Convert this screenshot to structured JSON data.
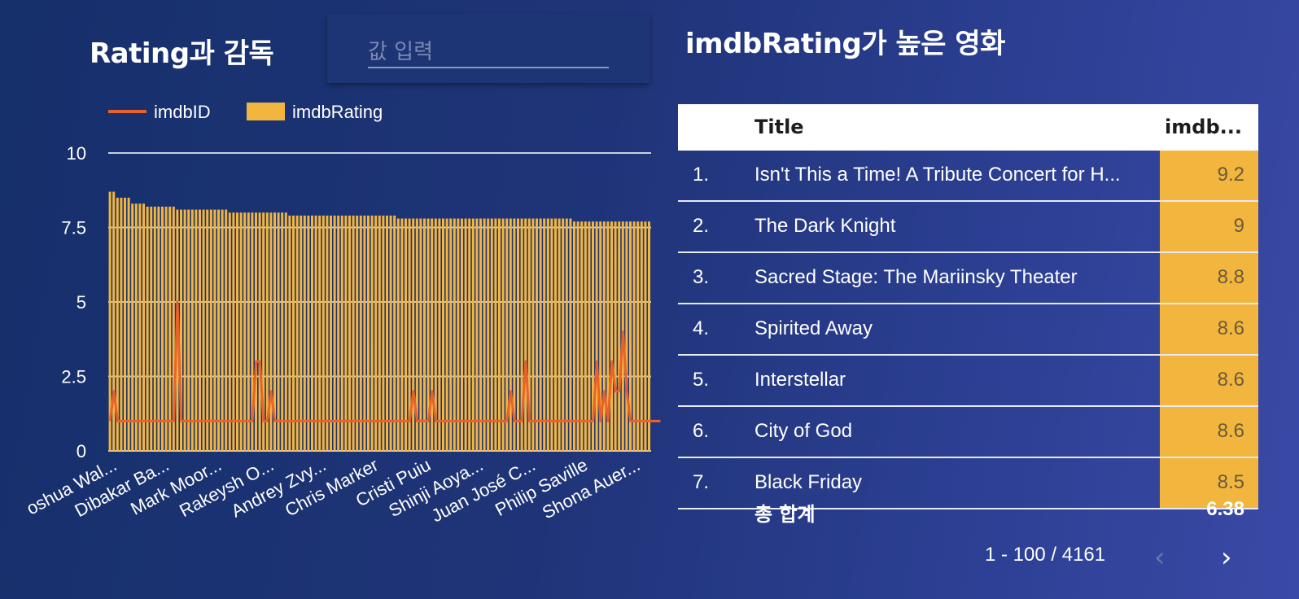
{
  "left": {
    "title": "Rating과 감독",
    "input_placeholder": "값 입력"
  },
  "right": {
    "title": "imdbRating가 높은 영화",
    "columns": [
      "Title",
      "imdb..."
    ],
    "rows": [
      {
        "num": "1.",
        "title": "Isn't This a Time! A Tribute Concert for H...",
        "rating": "9.2"
      },
      {
        "num": "2.",
        "title": "The Dark Knight",
        "rating": "9"
      },
      {
        "num": "3.",
        "title": "Sacred Stage: The Mariinsky Theater",
        "rating": "8.8"
      },
      {
        "num": "4.",
        "title": "Spirited Away",
        "rating": "8.6"
      },
      {
        "num": "5.",
        "title": "Interstellar",
        "rating": "8.6"
      },
      {
        "num": "6.",
        "title": "City of God",
        "rating": "8.6"
      },
      {
        "num": "7.",
        "title": "Black Friday",
        "rating": "8.5"
      }
    ],
    "total_label": "총 합계",
    "total_value": "6.38",
    "pagination": "1 - 100 / 4161",
    "prev_icon": "chevron-left-icon",
    "next_icon": "chevron-right-icon"
  },
  "colors": {
    "bar": "#f2b53e",
    "line": "#e8632a",
    "grid": "#c9cfe2"
  },
  "chart_data": {
    "type": "bar",
    "legend": [
      {
        "name": "imdbID",
        "kind": "line",
        "color": "#e8632a"
      },
      {
        "name": "imdbRating",
        "kind": "bar",
        "color": "#f2b53e"
      }
    ],
    "ylim": [
      0,
      10
    ],
    "yticks": [
      "0",
      "2.5",
      "5",
      "7.5",
      "10"
    ],
    "tick_labels": [
      "oshua Wal...",
      "Dibakar Ba...",
      "Mark Moor...",
      "Rakeysh O...",
      "Andrey Zvy...",
      "Chris Marker",
      "Cristi Puiu",
      "Shinji Aoya...",
      "Juan José C...",
      "Philip Saville",
      "Shona Auer..."
    ],
    "series": [
      {
        "name": "imdbRating",
        "type": "bar",
        "values": [
          8.7,
          8.7,
          8.5,
          8.5,
          8.5,
          8.5,
          8.3,
          8.3,
          8.3,
          8.3,
          8.2,
          8.2,
          8.2,
          8.2,
          8.2,
          8.2,
          8.2,
          8.2,
          8.1,
          8.1,
          8.1,
          8.1,
          8.1,
          8.1,
          8.1,
          8.1,
          8.1,
          8.1,
          8.1,
          8.1,
          8.1,
          8.1,
          8.0,
          8.0,
          8.0,
          8.0,
          8.0,
          8.0,
          8.0,
          8.0,
          8.0,
          8.0,
          8.0,
          8.0,
          8.0,
          8.0,
          8.0,
          8.0,
          7.9,
          7.9,
          7.9,
          7.9,
          7.9,
          7.9,
          7.9,
          7.9,
          7.9,
          7.9,
          7.9,
          7.9,
          7.9,
          7.9,
          7.9,
          7.9,
          7.9,
          7.9,
          7.9,
          7.9,
          7.9,
          7.9,
          7.9,
          7.9,
          7.9,
          7.9,
          7.9,
          7.9,
          7.9,
          7.8,
          7.8,
          7.8,
          7.8,
          7.8,
          7.8,
          7.8,
          7.8,
          7.8,
          7.8,
          7.8,
          7.8,
          7.8,
          7.8,
          7.8,
          7.8,
          7.8,
          7.8,
          7.8,
          7.8,
          7.8,
          7.8,
          7.8,
          7.8,
          7.8,
          7.8,
          7.8,
          7.8,
          7.8,
          7.8,
          7.8,
          7.8,
          7.8,
          7.8,
          7.8,
          7.8,
          7.8,
          7.8,
          7.8,
          7.8,
          7.8,
          7.8,
          7.8,
          7.8,
          7.8,
          7.8,
          7.8,
          7.7,
          7.7,
          7.7,
          7.7,
          7.7,
          7.7,
          7.7,
          7.7,
          7.7,
          7.7,
          7.7,
          7.7,
          7.7,
          7.7,
          7.7,
          7.7,
          7.7,
          7.7,
          7.7,
          7.7,
          7.7
        ]
      },
      {
        "name": "imdbID",
        "type": "line",
        "values": [
          1,
          2,
          1,
          1,
          1,
          1,
          1,
          1,
          1,
          1,
          1,
          1,
          1,
          1,
          1,
          1,
          1,
          1,
          5,
          1,
          1,
          1,
          1,
          1,
          1,
          1,
          1,
          1,
          1,
          1,
          1,
          1,
          1,
          1,
          1,
          1,
          1,
          1,
          1,
          3,
          3,
          1,
          1,
          2,
          1,
          1,
          1,
          1,
          1,
          1,
          1,
          1,
          1,
          1,
          1,
          1,
          1,
          1,
          1,
          1,
          1,
          1,
          1,
          1,
          1,
          1,
          1,
          1,
          1,
          1,
          1,
          1,
          1,
          1,
          1,
          1,
          1,
          1,
          1,
          1,
          1,
          2,
          1,
          1,
          1,
          1,
          2,
          1,
          1,
          1,
          1,
          1,
          1,
          1,
          1,
          1,
          1,
          1,
          1,
          1,
          1,
          1,
          1,
          1,
          1,
          1,
          1,
          2,
          1,
          1,
          1,
          3,
          1,
          1,
          1,
          1,
          1,
          1,
          1,
          1,
          1,
          1,
          1,
          1,
          1,
          1,
          1,
          1,
          1,
          1,
          3,
          1,
          2,
          1,
          3,
          2,
          2,
          4,
          2,
          1,
          1,
          1,
          1,
          1,
          1,
          1,
          1,
          1
        ]
      }
    ]
  }
}
